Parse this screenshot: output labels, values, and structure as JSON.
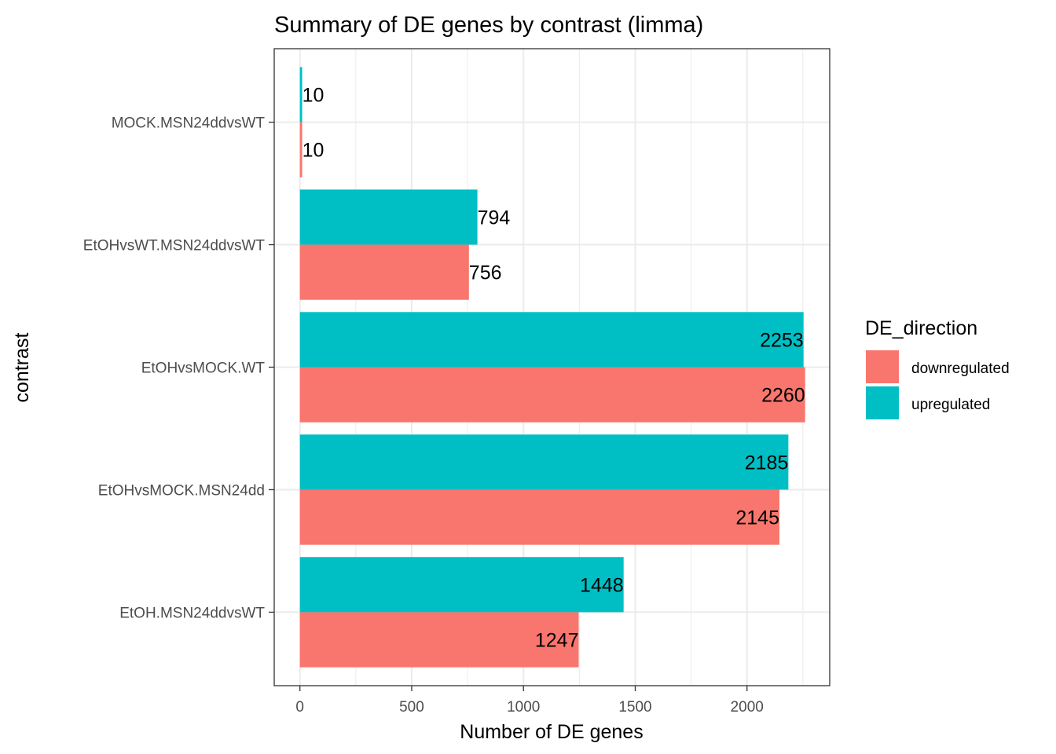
{
  "chart_data": {
    "type": "bar",
    "orientation": "horizontal",
    "title": "Summary of DE genes by contrast (limma)",
    "xlabel": "Number of DE genes",
    "ylabel": "contrast",
    "xlim": [
      -115,
      2370
    ],
    "xticks": [
      0,
      500,
      1000,
      1500,
      2000
    ],
    "grid": true,
    "legend_position": "right",
    "legend_title": "DE_direction",
    "categories": [
      "EtOH.MSN24ddvsWT",
      "EtOHvsMOCK.MSN24dd",
      "EtOHvsMOCK.WT",
      "EtOHvsWT.MSN24ddvsWT",
      "MOCK.MSN24ddvsWT"
    ],
    "series": [
      {
        "name": "downregulated",
        "color": "#F8766D",
        "values": [
          1247,
          2145,
          2260,
          756,
          10
        ]
      },
      {
        "name": "upregulated",
        "color": "#00BFC4",
        "values": [
          1448,
          2185,
          2253,
          794,
          10
        ]
      }
    ]
  }
}
